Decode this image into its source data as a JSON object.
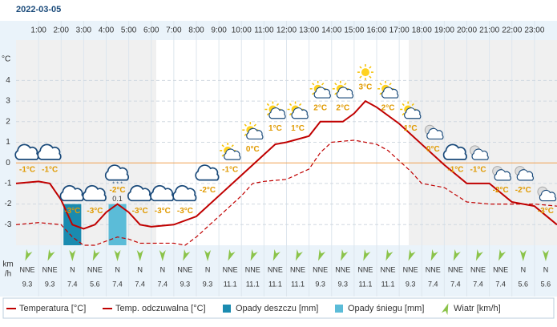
{
  "chart_data": {
    "type": "line",
    "title": "2022-03-05",
    "y_label": "°C",
    "hours": [
      "1:00",
      "2:00",
      "3:00",
      "4:00",
      "5:00",
      "6:00",
      "7:00",
      "8:00",
      "9:00",
      "10:00",
      "11:00",
      "12:00",
      "13:00",
      "14:00",
      "15:00",
      "16:00",
      "17:00",
      "18:00",
      "19:00",
      "20:00",
      "21:00",
      "22:00",
      "23:00"
    ],
    "xlim": [
      0,
      24
    ],
    "ylim": [
      -4,
      6
    ],
    "yticks": [
      4,
      3,
      2,
      1,
      0,
      -1,
      -2,
      -3
    ],
    "y2lim": [
      0,
      0.5
    ],
    "series": [
      {
        "name": "Temperatura [°C]",
        "color": "#c00000",
        "dashed": false,
        "x": [
          0,
          1,
          1.5,
          2,
          2.5,
          3,
          3.5,
          4,
          4.5,
          5,
          5.5,
          6,
          7,
          8,
          9,
          10,
          11,
          11.5,
          12,
          13,
          13.5,
          14,
          14.5,
          15,
          15.5,
          16,
          17,
          18,
          19,
          20,
          21,
          22,
          23,
          24
        ],
        "values": [
          -1.0,
          -0.9,
          -1.0,
          -1.8,
          -3.0,
          -3.2,
          -3.0,
          -2.4,
          -2.0,
          -2.4,
          -3.0,
          -3.1,
          -3.0,
          -2.6,
          -1.6,
          -0.6,
          0.4,
          0.9,
          1.0,
          1.3,
          2.0,
          2.0,
          2.0,
          2.4,
          3.0,
          2.7,
          1.9,
          0.9,
          -0.1,
          -1.0,
          -1.0,
          -1.9,
          -2.1,
          -3.0
        ]
      },
      {
        "name": "Temp. odczuwalna [°C]",
        "color": "#c00000",
        "dashed": true,
        "x": [
          0,
          1,
          2,
          2.5,
          3,
          3.5,
          4,
          4.5,
          5,
          5.5,
          6,
          7,
          7.5,
          8,
          9,
          10,
          10.5,
          11,
          12,
          13,
          13.5,
          14,
          15,
          16,
          16.5,
          17,
          17.5,
          18,
          18.5,
          19,
          20,
          21,
          22,
          23,
          24
        ],
        "values": [
          -3.0,
          -2.9,
          -3.0,
          -3.6,
          -4.0,
          -4.0,
          -3.8,
          -3.6,
          -3.7,
          -3.9,
          -3.9,
          -3.9,
          -4.0,
          -3.6,
          -2.6,
          -1.6,
          -1.0,
          -0.9,
          -0.8,
          -0.3,
          0.5,
          1.0,
          1.1,
          0.9,
          0.6,
          0.1,
          -0.4,
          -1.0,
          -1.1,
          -1.2,
          -1.9,
          -2.0,
          -2.0,
          -2.0,
          -2.1
        ]
      }
    ],
    "precipitation": [
      {
        "name": "Opady deszczu [mm]",
        "color": "#1a8bb0",
        "values": [
          null,
          null,
          0.1,
          null,
          null,
          null,
          null,
          null,
          null,
          null,
          null,
          null,
          null,
          null,
          null,
          null,
          null,
          null,
          null,
          null,
          null,
          null,
          null,
          null
        ]
      },
      {
        "name": "Opady śniegu [mm]",
        "color": "#5bbcd8",
        "values": [
          null,
          null,
          null,
          null,
          0.1,
          null,
          null,
          null,
          null,
          null,
          null,
          null,
          null,
          null,
          null,
          null,
          null,
          null,
          null,
          null,
          null,
          null,
          null,
          null
        ]
      }
    ],
    "forecast": {
      "temperatures": [
        -1,
        -1,
        -3,
        -3,
        -2,
        -3,
        -3,
        -3,
        -2,
        -1,
        0,
        1,
        1,
        2,
        2,
        3,
        2,
        1,
        0,
        -1,
        -1,
        -2,
        -2,
        -3
      ],
      "value_labels": [
        "-1°C",
        "-1°C",
        "-3°C",
        "-3°C",
        "-2°C",
        "-3°C",
        "-3°C",
        "-3°C",
        "-2°C",
        "-1°C",
        "0°C",
        "1°C",
        "1°C",
        "2°C",
        "2°C",
        "3°C",
        "2°C",
        "1°C",
        "0°C",
        "-1°C",
        "-1°C",
        "-2°C",
        "-2°C",
        "-3°C"
      ],
      "conditions": [
        "cloud",
        "cloud",
        "cloud",
        "cloud",
        "snow",
        "cloud",
        "cloud",
        "cloud",
        "cloud",
        "sun-cloud",
        "sun-cloud",
        "sun-cloud",
        "sun-cloud",
        "sun-cloud",
        "sun-cloud",
        "sun",
        "sun-cloud",
        "sun-cloud",
        "moon-cloud",
        "cloud",
        "moon-cloud",
        "moon-cloud",
        "moon-cloud",
        "moon-cloud"
      ]
    },
    "wind": {
      "name": "Wiatr [km/h]",
      "unit_lines": [
        "km",
        "/h"
      ],
      "directions": [
        "NNE",
        "NNE",
        "N",
        "NNE",
        "N",
        "N",
        "N",
        "NNE",
        "N",
        "NNE",
        "NNE",
        "NNE",
        "NNE",
        "NNE",
        "NNE",
        "NNE",
        "NNE",
        "NNE",
        "NNE",
        "NNE",
        "NNE",
        "NNE",
        "N",
        "N"
      ],
      "speeds": [
        9.3,
        9.3,
        7.4,
        5.6,
        7.4,
        7.4,
        7.4,
        9.3,
        9.3,
        11.1,
        11.1,
        11.1,
        11.1,
        9.3,
        9.3,
        11.1,
        11.1,
        9.3,
        7.4,
        7.4,
        7.4,
        7.4,
        5.6,
        5.6
      ]
    }
  }
}
